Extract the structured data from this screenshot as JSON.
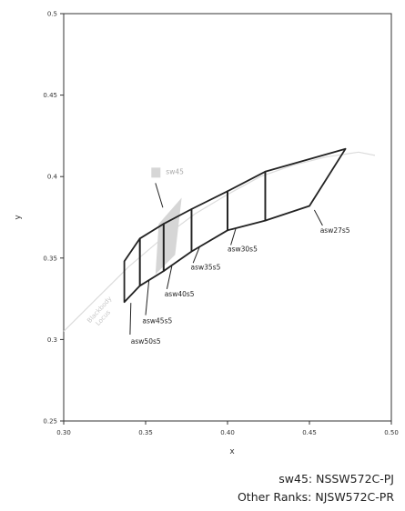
{
  "chart_data": {
    "type": "line",
    "title": "",
    "xlabel": "x",
    "ylabel": "y",
    "xlim": [
      0.3,
      0.5
    ],
    "ylim": [
      0.25,
      0.5
    ],
    "xticks": [
      "0.30",
      "0.35",
      "0.40",
      "0.45",
      "0.50"
    ],
    "yticks": [
      "0.25",
      "0.3",
      "0.35",
      "0.4",
      "0.45",
      "0.5"
    ],
    "grid": false,
    "locus_label": [
      "Blackbody",
      "Locus"
    ],
    "locus": [
      [
        0.3,
        0.305
      ],
      [
        0.32,
        0.325
      ],
      [
        0.34,
        0.345
      ],
      [
        0.36,
        0.362
      ],
      [
        0.38,
        0.377
      ],
      [
        0.4,
        0.389
      ],
      [
        0.42,
        0.4
      ],
      [
        0.44,
        0.407
      ],
      [
        0.46,
        0.412
      ],
      [
        0.48,
        0.415
      ],
      [
        0.49,
        0.413
      ]
    ],
    "bins": [
      {
        "name": "asw50s5",
        "polygon": [
          [
            0.337,
            0.323
          ],
          [
            0.3465,
            0.333
          ],
          [
            0.3465,
            0.362
          ],
          [
            0.337,
            0.348
          ]
        ]
      },
      {
        "name": "asw45s5",
        "polygon": [
          [
            0.3465,
            0.333
          ],
          [
            0.361,
            0.342
          ],
          [
            0.361,
            0.371
          ],
          [
            0.3465,
            0.362
          ]
        ]
      },
      {
        "name": "asw40s5",
        "polygon": [
          [
            0.361,
            0.342
          ],
          [
            0.378,
            0.354
          ],
          [
            0.378,
            0.38
          ],
          [
            0.361,
            0.371
          ]
        ]
      },
      {
        "name": "asw35s5",
        "polygon": [
          [
            0.378,
            0.354
          ],
          [
            0.4,
            0.367
          ],
          [
            0.4,
            0.391
          ],
          [
            0.378,
            0.38
          ]
        ]
      },
      {
        "name": "asw30s5",
        "polygon": [
          [
            0.4,
            0.367
          ],
          [
            0.423,
            0.373
          ],
          [
            0.423,
            0.403
          ],
          [
            0.4,
            0.391
          ]
        ]
      },
      {
        "name": "asw27s5",
        "polygon": [
          [
            0.423,
            0.373
          ],
          [
            0.45,
            0.382
          ],
          [
            0.472,
            0.417
          ],
          [
            0.423,
            0.403
          ]
        ]
      }
    ],
    "sw45": {
      "name": "sw45",
      "polygon": [
        [
          0.356,
          0.34
        ],
        [
          0.368,
          0.352
        ],
        [
          0.372,
          0.387
        ],
        [
          0.358,
          0.371
        ]
      ]
    },
    "legend": {
      "swatch_color": "#d6d6d6",
      "label": "sw45"
    }
  },
  "footer": {
    "line1": "sw45:  NSSW572C-PJ",
    "line2": "Other Ranks:  NJSW572C-PR"
  }
}
